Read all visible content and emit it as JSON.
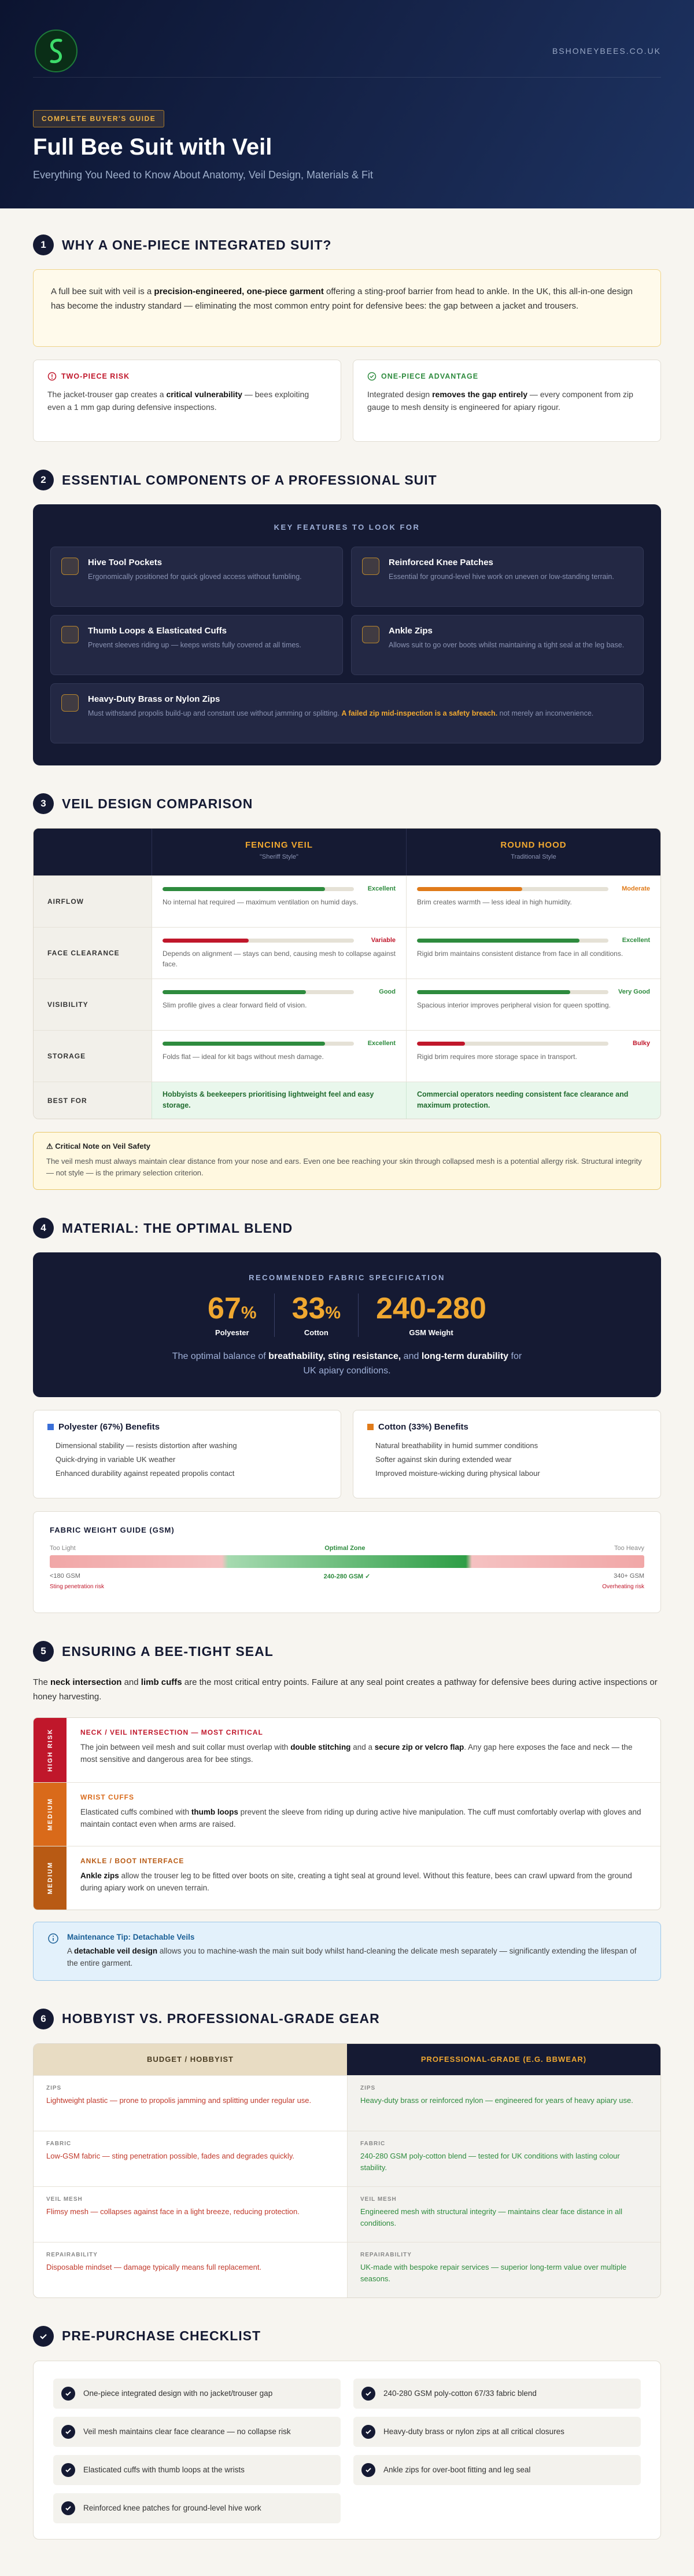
{
  "header": {
    "domain": "BSHONEYBEES.CO.UK",
    "badge": "COMPLETE BUYER'S GUIDE",
    "title": "Full Bee Suit with Veil",
    "subtitle": "Everything You Need to Know About Anatomy, Veil Design, Materials & Fit"
  },
  "s1": {
    "num": "1",
    "title": "WHY A ONE-PIECE INTEGRATED SUIT?",
    "intro": [
      "A full bee suit with veil is a ",
      {
        "b": "precision-engineered, one-piece garment"
      },
      " offering a sting-proof barrier from head to ankle. In the UK, this all-in-one design has become the industry standard — eliminating the most common entry point for defensive bees: the gap between a jacket and trousers."
    ],
    "cards": [
      {
        "title": "TWO-PIECE RISK",
        "text": [
          "The jacket-trouser gap creates a ",
          {
            "b": "critical vulnerability"
          },
          " — bees exploiting even a 1 mm gap during defensive inspections."
        ]
      },
      {
        "title": "ONE-PIECE ADVANTAGE",
        "text": [
          "Integrated design ",
          {
            "b": "removes the gap entirely"
          },
          " — every component from zip gauge to mesh density is engineered for apiary rigour."
        ]
      }
    ]
  },
  "s2": {
    "num": "2",
    "title": "ESSENTIAL COMPONENTS OF A PROFESSIONAL SUIT",
    "box_title": "KEY FEATURES TO LOOK FOR",
    "features": [
      {
        "title": "Hive Tool Pockets",
        "text": "Ergonomically positioned for quick gloved access without fumbling."
      },
      {
        "title": "Reinforced Knee Patches",
        "text": "Essential for ground-level hive work on uneven or low-standing terrain."
      },
      {
        "title": "Thumb Loops & Elasticated Cuffs",
        "text": "Prevent sleeves riding up — keeps wrists fully covered at all times."
      },
      {
        "title": "Ankle Zips",
        "text": "Allows suit to go over boots whilst maintaining a tight seal at the leg base."
      },
      {
        "title": "Heavy-Duty Brass or Nylon Zips",
        "text": [
          "Must withstand propolis build-up and constant use without jamming or splitting. ",
          {
            "hl": "A failed zip mid-inspection is a safety breach."
          },
          " not merely an inconvenience."
        ]
      }
    ]
  },
  "s3": {
    "num": "3",
    "title": "VEIL DESIGN COMPARISON",
    "rating_scale": [
      0,
      100
    ],
    "columns": [
      {
        "title": "FENCING VEIL",
        "sub": "\"Sheriff Style\""
      },
      {
        "title": "ROUND HOOD",
        "sub": "Traditional Style"
      }
    ],
    "rows": [
      {
        "label": "AIRFLOW",
        "cells": [
          {
            "rating": "Excellent",
            "score": 85,
            "color": "#2e8b3e",
            "text": "No internal hat required — maximum ventilation on humid days."
          },
          {
            "rating": "Moderate",
            "score": 55,
            "color": "#e07b1a",
            "text": "Brim creates warmth — less ideal in high humidity."
          }
        ]
      },
      {
        "label": "FACE CLEARANCE",
        "cells": [
          {
            "rating": "Variable",
            "score": 45,
            "color": "#c0172b",
            "text": "Depends on alignment — stays can bend, causing mesh to collapse against face."
          },
          {
            "rating": "Excellent",
            "score": 85,
            "color": "#2e8b3e",
            "text": "Rigid brim maintains consistent distance from face in all conditions."
          }
        ]
      },
      {
        "label": "VISIBILITY",
        "cells": [
          {
            "rating": "Good",
            "score": 75,
            "color": "#2e8b3e",
            "text": "Slim profile gives a clear forward field of vision."
          },
          {
            "rating": "Very Good",
            "score": 80,
            "color": "#2e8b3e",
            "text": "Spacious interior improves peripheral vision for queen spotting."
          }
        ]
      },
      {
        "label": "STORAGE",
        "cells": [
          {
            "rating": "Excellent",
            "score": 85,
            "color": "#2e8b3e",
            "text": "Folds flat — ideal for kit bags without mesh damage."
          },
          {
            "rating": "Bulky",
            "score": 25,
            "color": "#c0172b",
            "text": "Rigid brim requires more storage space in transport."
          }
        ]
      }
    ],
    "best_for": {
      "label": "BEST FOR",
      "cells": [
        "Hobbyists & beekeepers prioritising lightweight feel and easy storage.",
        "Commercial operators needing consistent face clearance and maximum protection."
      ]
    },
    "note": {
      "title": "Critical Note on Veil Safety",
      "text": "The veil mesh must always maintain clear distance from your nose and ears. Even one bee reaching your skin through collapsed mesh is a potential allergy risk. Structural integrity — not style — is the primary selection criterion."
    }
  },
  "s4": {
    "num": "4",
    "title": "MATERIAL: THE OPTIMAL BLEND",
    "box_title": "RECOMMENDED FABRIC SPECIFICATION",
    "stats": [
      {
        "value": "67",
        "unit": "%",
        "label": "Polyester"
      },
      {
        "value": "33",
        "unit": "%",
        "label": "Cotton"
      },
      {
        "value": "240-280",
        "label": "GSM Weight"
      }
    ],
    "summary": [
      "The optimal balance of ",
      {
        "b": "breathability, sting resistance,"
      },
      " and ",
      {
        "b": "long-term durability"
      },
      " for UK apiary conditions."
    ],
    "benefits": [
      {
        "title": "Polyester (67%) Benefits",
        "items": [
          "Dimensional stability — resists distortion after washing",
          "Quick-drying in variable UK weather",
          "Enhanced durability against repeated propolis contact"
        ]
      },
      {
        "title": "Cotton (33%) Benefits",
        "items": [
          "Natural breathability in humid summer conditions",
          "Softer against skin during extended wear",
          "Improved moisture-wicking during physical labour"
        ]
      }
    ],
    "gsm": {
      "title": "FABRIC WEIGHT GUIDE (GSM)",
      "top": [
        "Too Light",
        "Optimal Zone",
        "Too Heavy"
      ],
      "bottom": [
        "<180 GSM",
        "240-280 GSM ✓",
        "340+ GSM"
      ],
      "notes": [
        "Sting penetration risk",
        "Overheating risk"
      ]
    }
  },
  "s5": {
    "num": "5",
    "title": "ENSURING A BEE-TIGHT SEAL",
    "intro": [
      "The ",
      {
        "b": "neck intersection"
      },
      " and ",
      {
        "b": "limb cuffs"
      },
      " are the most critical entry points. Failure at any seal point creates a pathway for defensive bees during active inspections or honey harvesting."
    ],
    "items": [
      {
        "risk": "HIGH RISK",
        "title": "NECK / VEIL INTERSECTION — MOST CRITICAL",
        "text": [
          "The join between veil mesh and suit collar must overlap with ",
          {
            "b": "double stitching"
          },
          " and a ",
          {
            "b": "secure zip or velcro flap"
          },
          ". Any gap here exposes the face and neck — the most sensitive and dangerous area for bee stings."
        ]
      },
      {
        "risk": "MEDIUM",
        "title": "WRIST CUFFS",
        "text": [
          "Elasticated cuffs combined with ",
          {
            "b": "thumb loops"
          },
          " prevent the sleeve from riding up during active hive manipulation. The cuff must comfortably overlap with gloves and maintain contact even when arms are raised."
        ]
      },
      {
        "risk": "MEDIUM",
        "title": "ANKLE / BOOT INTERFACE",
        "text": [
          {
            "b": "Ankle zips"
          },
          " allow the trouser leg to be fitted over boots on site, creating a tight seal at ground level. Without this feature, bees can crawl upward from the ground during apiary work on uneven terrain."
        ]
      }
    ],
    "tip": {
      "title": "Maintenance Tip: Detachable Veils",
      "text": [
        "A ",
        {
          "b": "detachable veil design"
        },
        " allows you to machine-wash the main suit body whilst hand-cleaning the delicate mesh separately — significantly extending the lifespan of the entire garment."
      ]
    }
  },
  "s6": {
    "num": "6",
    "title": "HOBBYIST VS. PROFESSIONAL-GRADE GEAR",
    "columns": [
      "BUDGET / HOBBYIST",
      "PROFESSIONAL-GRADE (E.G. BBWEAR)"
    ],
    "rows": [
      {
        "label": "ZIPS",
        "cells": [
          "Lightweight plastic — prone to propolis jamming and splitting under regular use.",
          "Heavy-duty brass or reinforced nylon — engineered for years of heavy apiary use."
        ]
      },
      {
        "label": "FABRIC",
        "cells": [
          "Low-GSM fabric — sting penetration possible, fades and degrades quickly.",
          "240-280 GSM poly-cotton blend — tested for UK conditions with lasting colour stability."
        ]
      },
      {
        "label": "VEIL MESH",
        "cells": [
          "Flimsy mesh — collapses against face in a light breeze, reducing protection.",
          "Engineered mesh with structural integrity — maintains clear face distance in all conditions."
        ]
      },
      {
        "label": "REPAIRABILITY",
        "cells": [
          "Disposable mindset — damage typically means full replacement.",
          "UK-made with bespoke repair services — superior long-term value over multiple seasons."
        ]
      }
    ]
  },
  "s7": {
    "title": "PRE-PURCHASE CHECKLIST",
    "items": [
      "One-piece integrated design with no jacket/trouser gap",
      "240-280 GSM poly-cotton 67/33 fabric blend",
      "Veil mesh maintains clear face clearance — no collapse risk",
      "Heavy-duty brass or nylon zips at all critical closures",
      "Elasticated cuffs with thumb loops at the wrists",
      "Ankle zips for over-boot fitting and leg seal",
      "Reinforced knee patches for ground-level hive work"
    ]
  }
}
